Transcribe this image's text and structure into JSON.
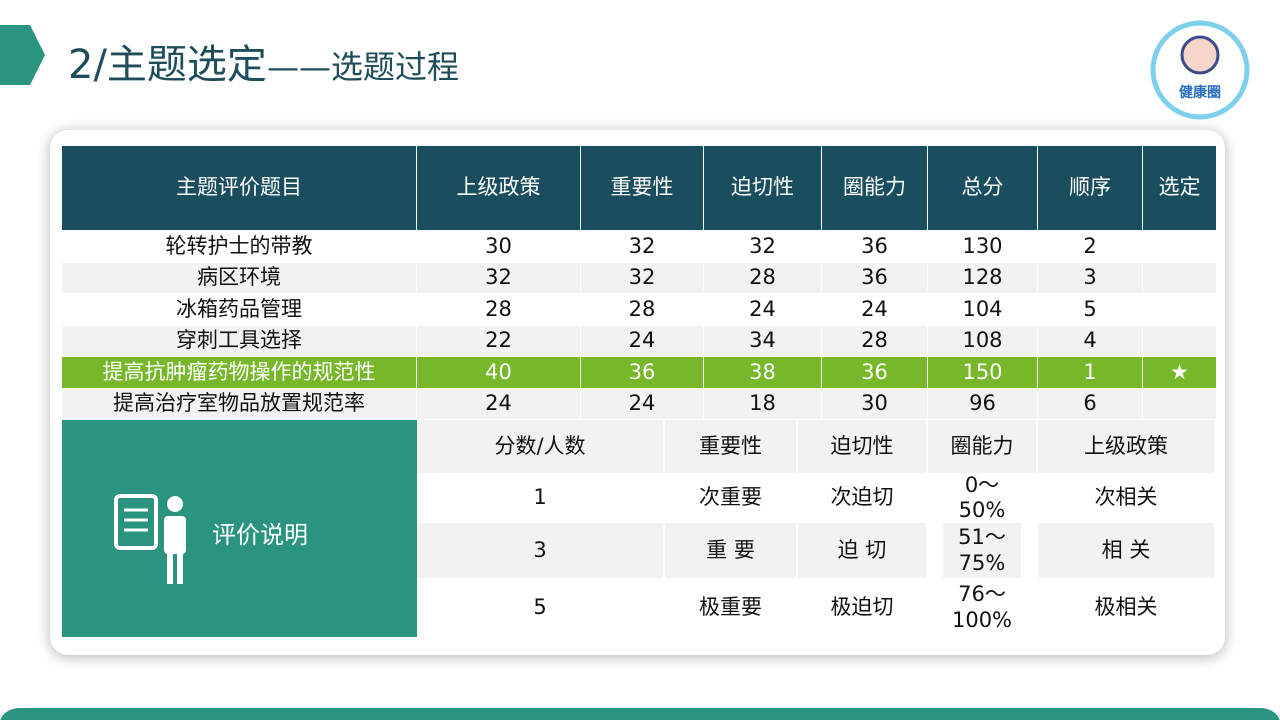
{
  "header": {
    "title": "2/主题选定",
    "subtitle": "——选题过程",
    "logo": "健康圈"
  },
  "table": {
    "headers": [
      "主题评价题目",
      "上级政策",
      "重要性",
      "迫切性",
      "圈能力",
      "总分",
      "顺序",
      "选定"
    ],
    "rows": [
      [
        "轮转护士的带教",
        "30",
        "32",
        "32",
        "36",
        "130",
        "2",
        null
      ],
      [
        "病区环境",
        "32",
        "32",
        "28",
        "36",
        "128",
        "3",
        null
      ],
      [
        "冰箱药品管理",
        "28",
        "28",
        "24",
        "24",
        "104",
        "5",
        null
      ],
      [
        "穿刺工具选择",
        "22",
        "24",
        "34",
        "28",
        "108",
        "4",
        null
      ],
      [
        "提高抗肿瘤药物操作的规范性",
        "40",
        "36",
        "38",
        "36",
        "150",
        "1",
        "★"
      ],
      [
        "提高治疗室物品放置规范率",
        "24",
        "24",
        "18",
        "30",
        "96",
        "6",
        null
      ]
    ]
  },
  "legend": {
    "label": "评价说明",
    "headers": [
      "分数/人数",
      "重要性",
      "迫切性",
      "圈能力",
      "上级政策"
    ],
    "rows": [
      [
        "1",
        "次重要",
        "次迫切",
        "0～50%",
        "次相关"
      ],
      [
        "3",
        "重 要",
        "迫 切",
        "51～75%",
        "相 关"
      ],
      [
        "5",
        "极重要",
        "极迫切",
        "76～100%",
        "极相关"
      ]
    ]
  }
}
